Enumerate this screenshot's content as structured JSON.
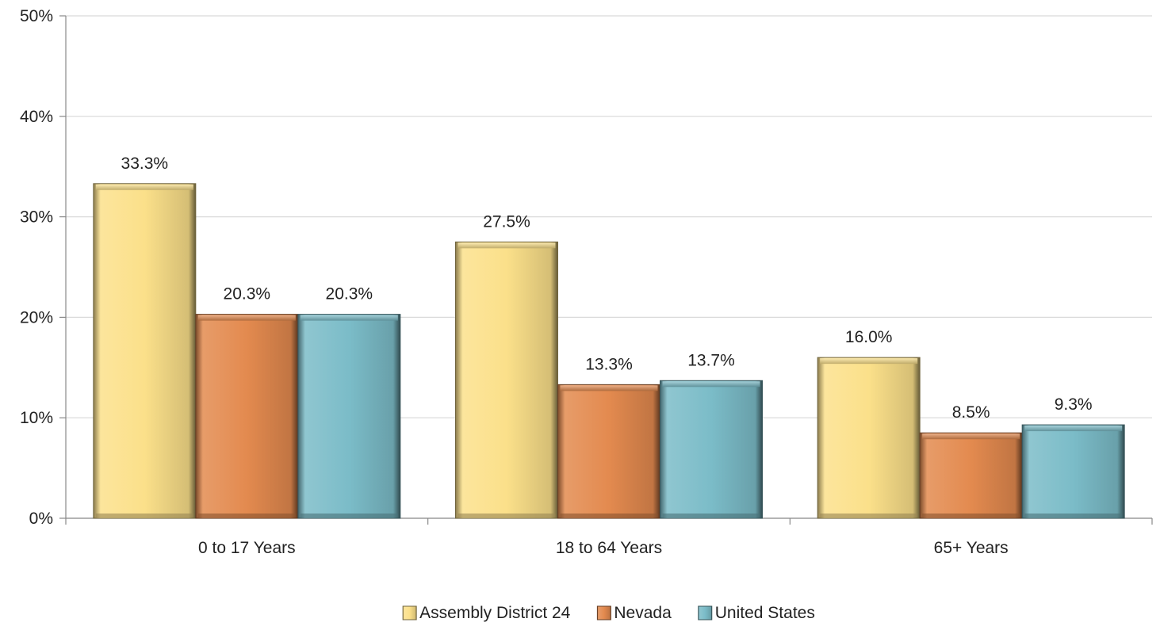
{
  "chart_data": {
    "type": "bar",
    "categories": [
      "0 to 17 Years",
      "18 to 64 Years",
      "65+ Years"
    ],
    "series": [
      {
        "name": "Assembly District 24",
        "values": [
          33.3,
          27.5,
          16.0
        ],
        "labels": [
          "33.3%",
          "27.5%",
          "16.0%"
        ],
        "color": "#FBE08A"
      },
      {
        "name": "Nevada",
        "values": [
          20.3,
          13.3,
          8.5
        ],
        "labels": [
          "20.3%",
          "13.3%",
          "8.5%"
        ],
        "color": "#E38A4F"
      },
      {
        "name": "United States",
        "values": [
          20.3,
          13.7,
          9.3
        ],
        "labels": [
          "20.3%",
          "13.7%",
          "9.3%"
        ],
        "color": "#7BBCC8"
      }
    ],
    "ylim": [
      0,
      50
    ],
    "yticks": [
      0,
      10,
      20,
      30,
      40,
      50
    ],
    "ytick_labels": [
      "0%",
      "10%",
      "20%",
      "30%",
      "40%",
      "50%"
    ],
    "grid": true,
    "legend_position": "bottom",
    "title": "",
    "xlabel": "",
    "ylabel": ""
  }
}
